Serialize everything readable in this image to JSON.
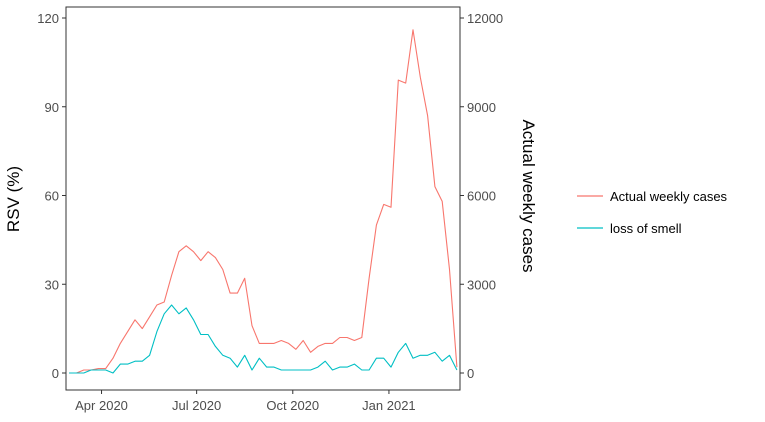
{
  "chart_data": {
    "type": "line",
    "title": "",
    "ylabel_left": "RSV (%)",
    "ylabel_right": "Actual weekly cases",
    "xlabel": "",
    "x_ticks": [
      "Apr 2020",
      "Jul 2020",
      "Oct 2020",
      "Jan 2021"
    ],
    "x_tick_dates": [
      "2020-04-01",
      "2020-07-01",
      "2020-10-01",
      "2021-01-01"
    ],
    "ylim_left": [
      0,
      120
    ],
    "y_ticks_left": [
      0,
      30,
      60,
      90,
      120
    ],
    "ylim_right": [
      0,
      12000
    ],
    "y_ticks_right": [
      0,
      3000,
      6000,
      9000,
      12000
    ],
    "grid": false,
    "legend_position": "right",
    "x": [
      "2020-03-01",
      "2020-03-08",
      "2020-03-15",
      "2020-03-22",
      "2020-03-29",
      "2020-04-05",
      "2020-04-12",
      "2020-04-19",
      "2020-04-26",
      "2020-05-03",
      "2020-05-10",
      "2020-05-17",
      "2020-05-24",
      "2020-05-31",
      "2020-06-07",
      "2020-06-14",
      "2020-06-21",
      "2020-06-28",
      "2020-07-05",
      "2020-07-12",
      "2020-07-19",
      "2020-07-26",
      "2020-08-02",
      "2020-08-09",
      "2020-08-16",
      "2020-08-23",
      "2020-08-30",
      "2020-09-06",
      "2020-09-13",
      "2020-09-20",
      "2020-09-27",
      "2020-10-04",
      "2020-10-11",
      "2020-10-18",
      "2020-10-25",
      "2020-11-01",
      "2020-11-08",
      "2020-11-15",
      "2020-11-22",
      "2020-11-29",
      "2020-12-06",
      "2020-12-13",
      "2020-12-20",
      "2020-12-27",
      "2021-01-03",
      "2021-01-10",
      "2021-01-17",
      "2021-01-24",
      "2021-01-31",
      "2021-02-07",
      "2021-02-14",
      "2021-02-21",
      "2021-02-28",
      "2021-03-07"
    ],
    "series": [
      {
        "name": "Actual weekly cases",
        "axis": "right",
        "color": "#F8766D",
        "values": [
          0,
          0,
          100,
          100,
          150,
          150,
          500,
          1000,
          1400,
          1800,
          1500,
          1900,
          2300,
          2400,
          3300,
          4100,
          4300,
          4100,
          3800,
          4100,
          3900,
          3500,
          2700,
          2700,
          3200,
          1600,
          1000,
          1000,
          1000,
          1100,
          1000,
          800,
          1100,
          700,
          900,
          1000,
          1000,
          1200,
          1200,
          1100,
          1200,
          3200,
          5000,
          5700,
          5600,
          9900,
          9800,
          11600,
          10000,
          8700,
          6300,
          5800,
          3500,
          200
        ]
      },
      {
        "name": "loss of smell",
        "axis": "left",
        "color": "#00BFC4",
        "values": [
          0,
          0,
          0,
          1,
          1,
          1,
          0,
          3,
          3,
          4,
          4,
          6,
          14,
          20,
          23,
          20,
          22,
          18,
          13,
          13,
          9,
          6,
          5,
          2,
          6,
          1,
          5,
          2,
          2,
          1,
          1,
          1,
          1,
          1,
          2,
          4,
          1,
          2,
          2,
          3,
          1,
          1,
          5,
          5,
          2,
          7,
          10,
          5,
          6,
          6,
          7,
          4,
          6,
          1
        ]
      }
    ]
  }
}
